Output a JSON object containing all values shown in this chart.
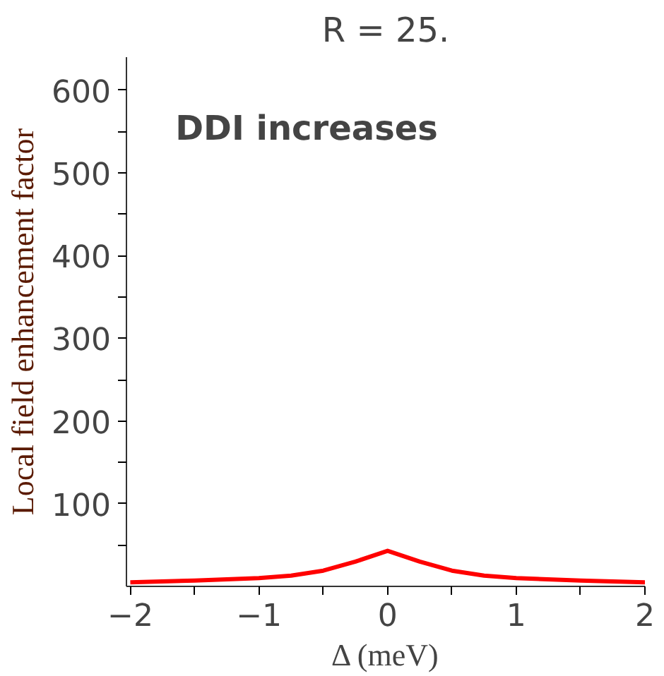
{
  "chart_data": {
    "type": "line",
    "title": "R = 25.",
    "xlabel": "Δ (meV)",
    "ylabel": "Local field enhancement factor",
    "annotations": [
      "DDI increases"
    ],
    "x": [
      -2,
      -1.5,
      -1,
      -0.75,
      -0.5,
      -0.25,
      0,
      0.25,
      0.5,
      0.75,
      1,
      1.5,
      2
    ],
    "series": [
      {
        "color": "#ff0000",
        "values": [
          5,
          7,
          10,
          13,
          19,
          30,
          43,
          30,
          19,
          13,
          10,
          7,
          5
        ]
      }
    ],
    "xlim": [
      -2.03,
      2
    ],
    "ylim": [
      0,
      640
    ],
    "xticks": [
      -2,
      {
        "value": -1.5,
        "label": null
      },
      -1,
      {
        "value": -0.5,
        "label": null
      },
      0,
      {
        "value": 0.5,
        "label": null
      },
      1,
      {
        "value": 1.5,
        "label": null
      },
      2
    ],
    "yticks": [
      {
        "value": 50,
        "label": null
      },
      100,
      {
        "value": 150,
        "label": null
      },
      200,
      {
        "value": 250,
        "label": null
      },
      300,
      {
        "value": 350,
        "label": null
      },
      400,
      {
        "value": 450,
        "label": null
      },
      500,
      {
        "value": 550,
        "label": null
      },
      600
    ],
    "grid": false,
    "marker": "none",
    "line_style": "solid"
  }
}
